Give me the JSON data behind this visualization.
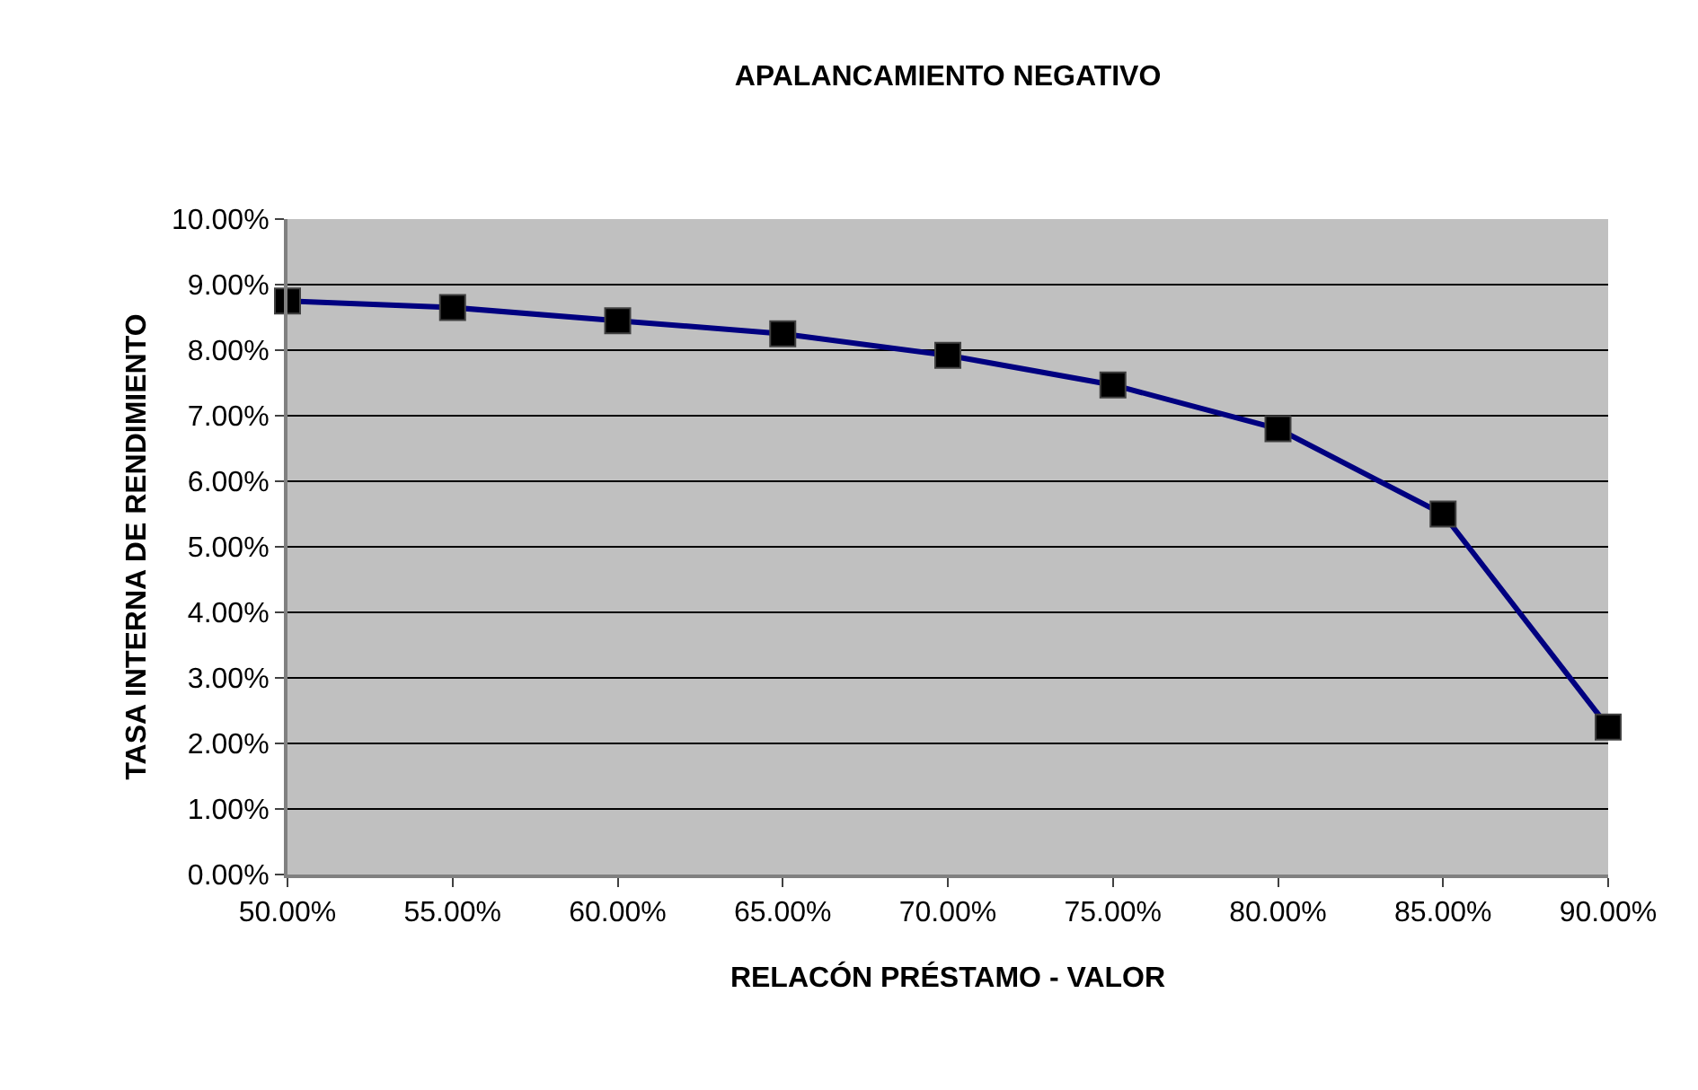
{
  "chart_data": {
    "type": "line",
    "title": "APALANCAMIENTO NEGATIVO",
    "xlabel": "RELACÓN PRÉSTAMO - VALOR",
    "ylabel": "TASA INTERNA DE RENDIMIENTO",
    "x": [
      50,
      55,
      60,
      65,
      70,
      75,
      80,
      85,
      90
    ],
    "series": [
      {
        "color": "#000080",
        "values": [
          8.75,
          8.65,
          8.45,
          8.25,
          7.92,
          7.47,
          6.8,
          5.5,
          2.25
        ]
      }
    ],
    "xlim": [
      50,
      90
    ],
    "xticks": [
      {
        "value": 50,
        "label": "50.00%"
      },
      {
        "value": 55,
        "label": "55.00%"
      },
      {
        "value": 60,
        "label": "60.00%"
      },
      {
        "value": 65,
        "label": "65.00%"
      },
      {
        "value": 70,
        "label": "70.00%"
      },
      {
        "value": 75,
        "label": "75.00%"
      },
      {
        "value": 80,
        "label": "80.00%"
      },
      {
        "value": 85,
        "label": "85.00%"
      },
      {
        "value": 90,
        "label": "90.00%"
      }
    ],
    "ylim": [
      0,
      10
    ],
    "yticks": [
      {
        "value": 0,
        "label": "0.00%"
      },
      {
        "value": 1,
        "label": "1.00%"
      },
      {
        "value": 2,
        "label": "2.00%"
      },
      {
        "value": 3,
        "label": "3.00%"
      },
      {
        "value": 4,
        "label": "4.00%"
      },
      {
        "value": 5,
        "label": "5.00%"
      },
      {
        "value": 6,
        "label": "6.00%"
      },
      {
        "value": 7,
        "label": "7.00%"
      },
      {
        "value": 8,
        "label": "8.00%"
      },
      {
        "value": 9,
        "label": "9.00%"
      },
      {
        "value": 10,
        "label": "10.00%"
      }
    ],
    "grid": "y",
    "marker": "square",
    "legend": false
  }
}
